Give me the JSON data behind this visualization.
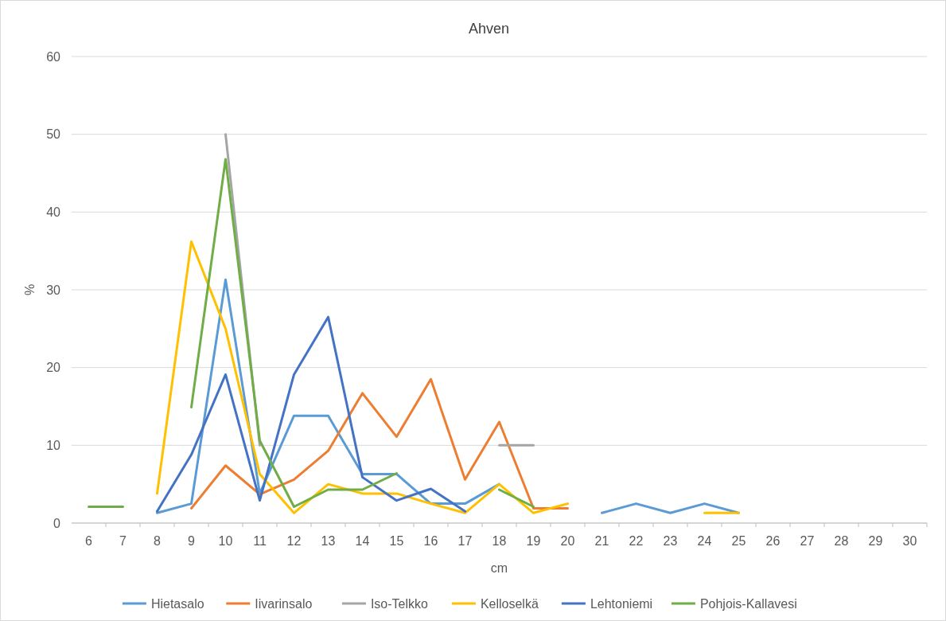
{
  "chart_data": {
    "type": "line",
    "title": "Ahven",
    "xlabel": "cm",
    "ylabel": "%",
    "categories": [
      "6",
      "7",
      "8",
      "9",
      "10",
      "11",
      "12",
      "13",
      "14",
      "15",
      "16",
      "17",
      "18",
      "19",
      "20",
      "21",
      "22",
      "23",
      "24",
      "25",
      "26",
      "27",
      "28",
      "29",
      "30"
    ],
    "ylim": [
      0,
      60
    ],
    "yticks": [
      0,
      10,
      20,
      30,
      40,
      50,
      60
    ],
    "grid": "y",
    "legend": "bottom",
    "marker": "none",
    "line_style": "solid",
    "series": [
      {
        "name": "Hietasalo",
        "color": "#5b9bd5",
        "values": [
          null,
          null,
          1.3,
          2.5,
          31.3,
          3.8,
          13.8,
          13.8,
          6.3,
          6.3,
          2.5,
          2.5,
          5.0,
          null,
          null,
          1.3,
          2.5,
          1.3,
          2.5,
          1.3,
          null,
          null,
          null,
          null,
          null
        ]
      },
      {
        "name": "Iivarinsalo",
        "color": "#ed7d31",
        "values": [
          null,
          null,
          null,
          1.9,
          7.4,
          3.7,
          5.6,
          9.3,
          16.7,
          11.1,
          18.5,
          5.6,
          13.0,
          1.9,
          1.9,
          null,
          null,
          null,
          null,
          null,
          null,
          null,
          null,
          null,
          null
        ]
      },
      {
        "name": "Iso-Telkko",
        "color": "#a5a5a5",
        "values": [
          null,
          null,
          null,
          null,
          50,
          10,
          null,
          null,
          null,
          null,
          null,
          null,
          10,
          10,
          null,
          null,
          null,
          null,
          null,
          null,
          null,
          null,
          null,
          null,
          null
        ]
      },
      {
        "name": "Kelloselkä",
        "color": "#ffc000",
        "values": [
          null,
          null,
          3.8,
          36.2,
          25.0,
          6.3,
          1.3,
          5.0,
          3.8,
          3.8,
          2.5,
          1.3,
          5.0,
          1.3,
          2.5,
          null,
          null,
          null,
          1.3,
          1.3,
          null,
          null,
          null,
          null,
          null
        ]
      },
      {
        "name": "Lehtoniemi",
        "color": "#4472c4",
        "values": [
          null,
          null,
          1.5,
          8.8,
          19.1,
          2.9,
          19.1,
          26.5,
          5.9,
          2.9,
          4.4,
          1.5,
          null,
          null,
          null,
          null,
          null,
          null,
          null,
          null,
          null,
          null,
          null,
          null,
          null
        ]
      },
      {
        "name": "Pohjois-Kallavesi",
        "color": "#70ad47",
        "values": [
          2.1,
          2.1,
          null,
          14.9,
          46.8,
          10.6,
          2.1,
          4.3,
          4.3,
          6.4,
          null,
          null,
          4.3,
          2.1,
          null,
          null,
          null,
          null,
          null,
          null,
          null,
          null,
          null,
          null,
          null
        ]
      }
    ]
  }
}
